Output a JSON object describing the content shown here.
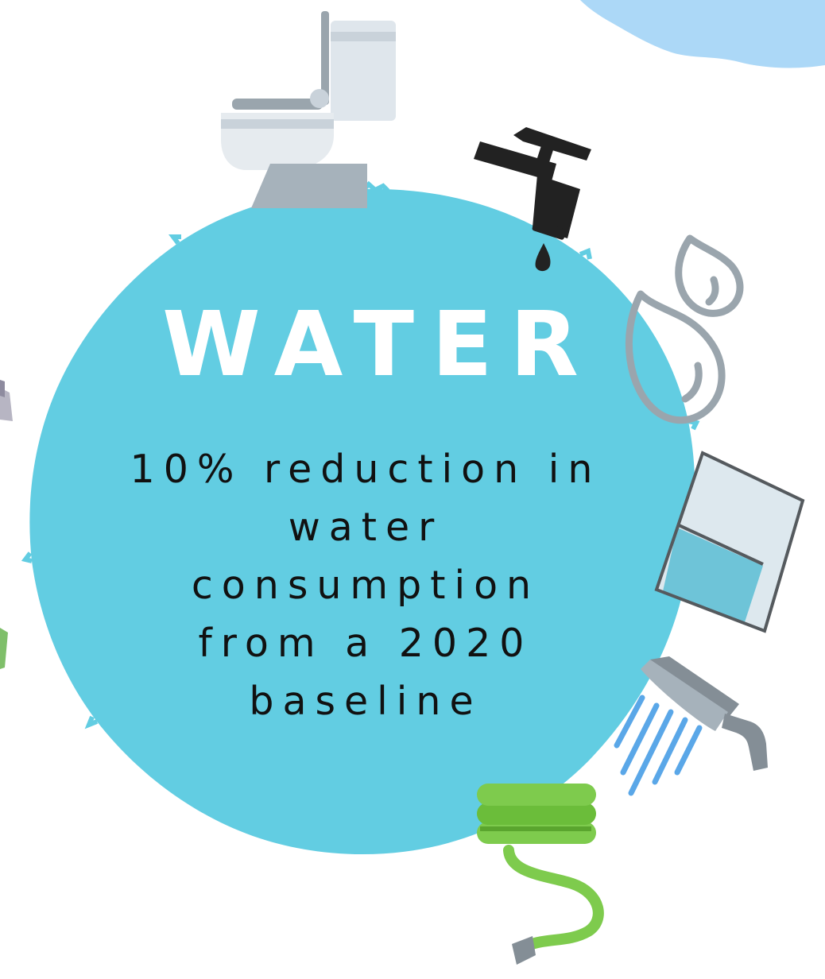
{
  "heading": "WATER",
  "target_lines": [
    "10% reduction in",
    "water",
    "consumption",
    "from a 2020",
    "baseline"
  ],
  "colors": {
    "circle": "#62cde2",
    "corner_splash": "#acd8f7",
    "heading": "#ffffff",
    "body_text": "#111111"
  },
  "icons": [
    "toilet-icon",
    "tap-icon",
    "water-drops-icon",
    "water-glass-icon",
    "shower-head-icon",
    "garden-hose-icon"
  ]
}
